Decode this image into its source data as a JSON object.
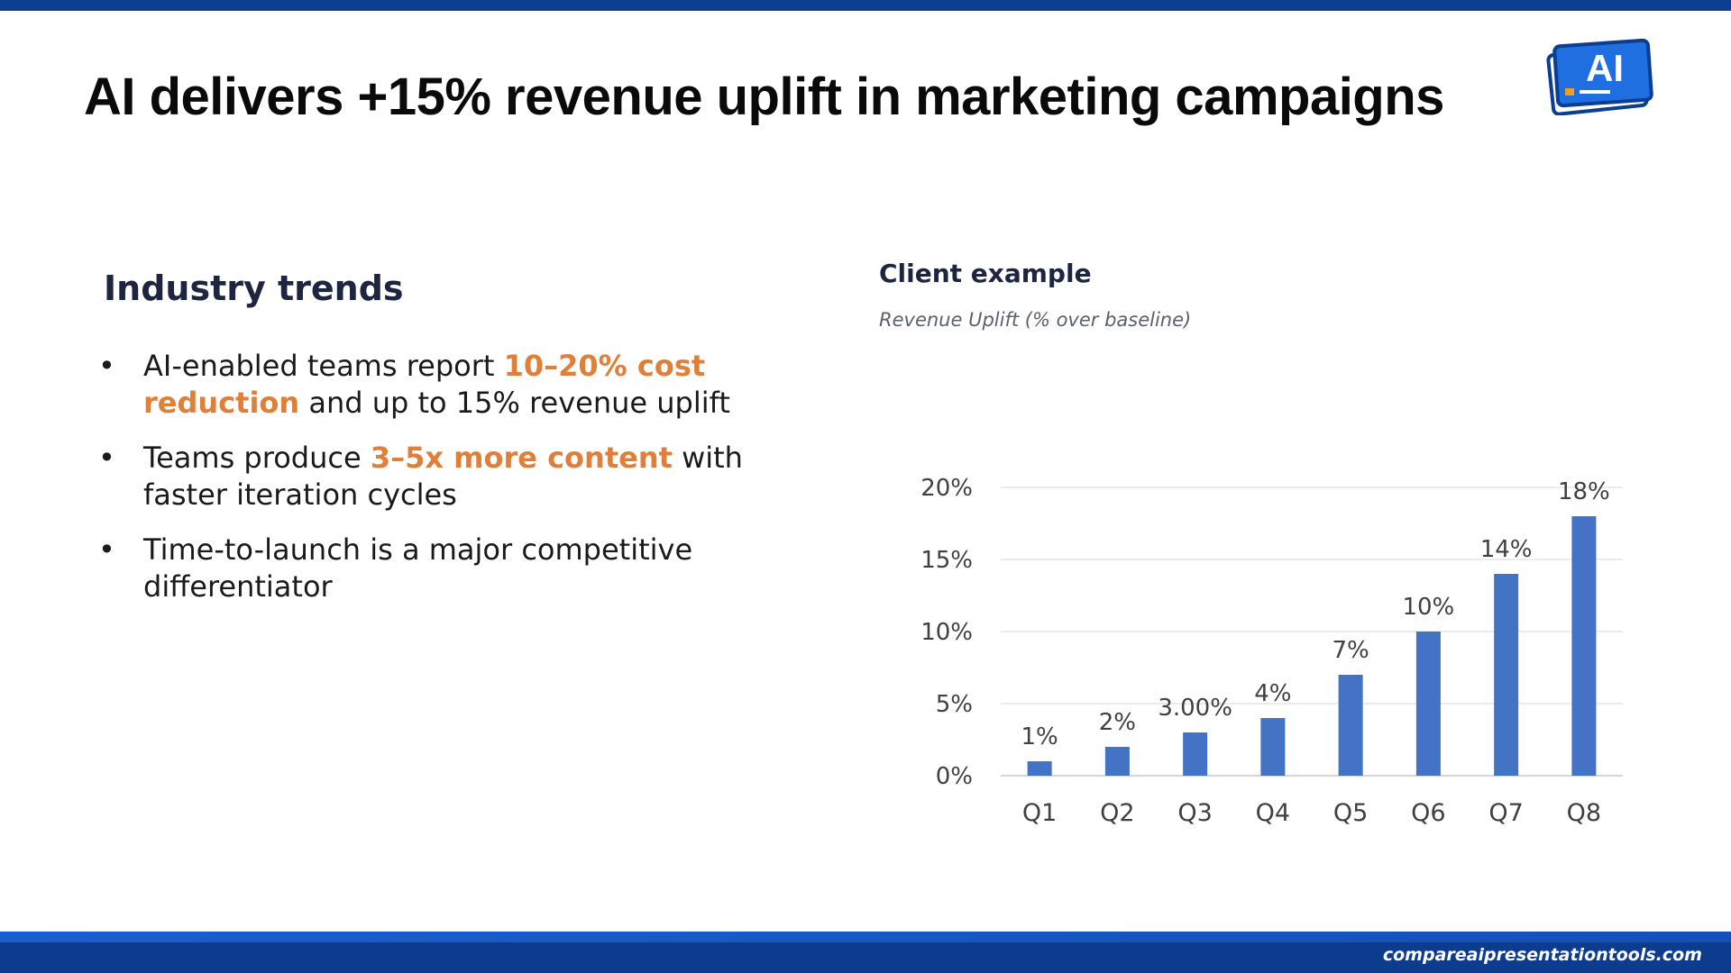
{
  "slide": {
    "title": "AI delivers +15% revenue uplift in marketing campaigns",
    "logo_text": "AI",
    "footer_url": "compareaipresentationtools.com"
  },
  "colors": {
    "brand_blue": "#0b3d91",
    "highlight_orange": "#e07f3a",
    "bar_blue": "#4472c4"
  },
  "industry": {
    "heading": "Industry trends",
    "bullets": [
      {
        "pre": "AI-enabled teams report ",
        "highlight": "10–20% cost reduction",
        "post": " and up to 15% revenue uplift"
      },
      {
        "pre": "Teams produce ",
        "highlight": "3–5x more content",
        "post": " with faster iteration cycles"
      },
      {
        "pre": "Time-to-launch is a major competitive differentiator",
        "highlight": "",
        "post": ""
      }
    ]
  },
  "client": {
    "heading": "Client example",
    "subtitle": "Revenue Uplift (% over baseline)"
  },
  "chart_data": {
    "type": "bar",
    "title": "Revenue Uplift (% over baseline)",
    "xlabel": "",
    "ylabel": "",
    "categories": [
      "Q1",
      "Q2",
      "Q3",
      "Q4",
      "Q5",
      "Q6",
      "Q7",
      "Q8"
    ],
    "values": [
      1,
      2,
      3,
      4,
      7,
      10,
      14,
      18
    ],
    "data_labels": [
      "1%",
      "2%",
      "3.00%",
      "4%",
      "7%",
      "10%",
      "14%",
      "18%"
    ],
    "ylim": [
      0,
      20
    ],
    "yticks": [
      0,
      5,
      10,
      15,
      20
    ],
    "ytick_labels": [
      "0%",
      "5%",
      "10%",
      "15%",
      "20%"
    ],
    "grid": true,
    "legend": "none"
  }
}
